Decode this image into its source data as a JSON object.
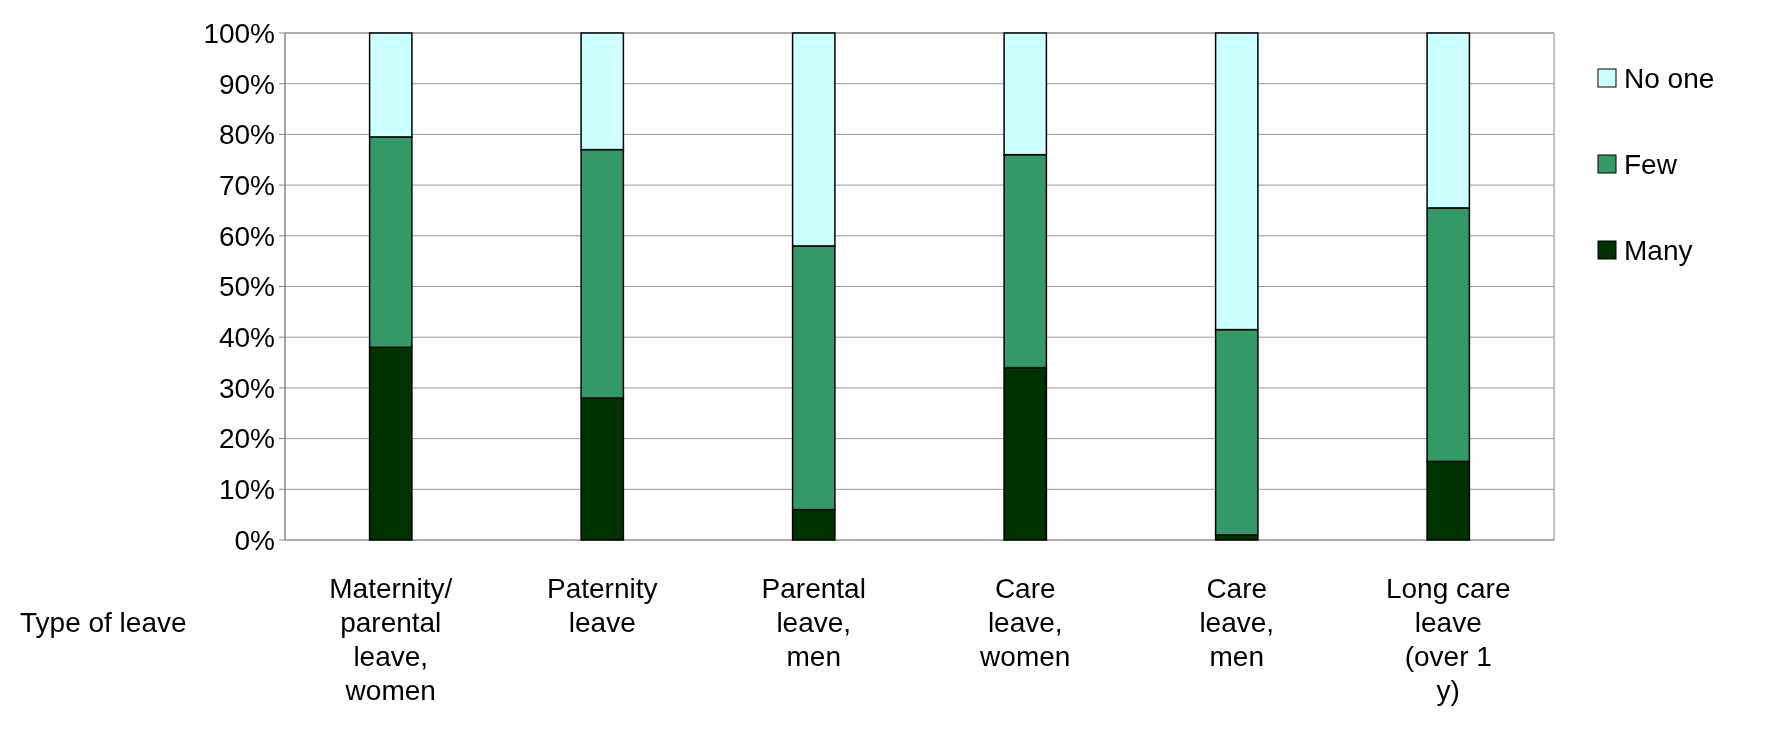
{
  "chart_data": {
    "type": "bar",
    "stacked": true,
    "xlabel": "Type of leave",
    "categories": [
      "Maternity/ parental leave, women",
      "Paternity leave",
      "Parental leave, men",
      "Care leave, women",
      "Care leave, men",
      "Long care leave (over 1 y)"
    ],
    "series": [
      {
        "name": "Many",
        "color": "#003300",
        "values": [
          38,
          28,
          6,
          34,
          1,
          15.5
        ]
      },
      {
        "name": "Few",
        "color": "#339966",
        "values": [
          41.5,
          49,
          52,
          42,
          40.5,
          50
        ]
      },
      {
        "name": "No one",
        "color": "#ccffff",
        "values": [
          20.5,
          23,
          42,
          24,
          58.5,
          34.5
        ]
      }
    ],
    "ylim": [
      0,
      100
    ],
    "yticks": [
      {
        "value": 0,
        "label": "0%"
      },
      {
        "value": 10,
        "label": "10%"
      },
      {
        "value": 20,
        "label": "20%"
      },
      {
        "value": 30,
        "label": "30%"
      },
      {
        "value": 40,
        "label": "40%"
      },
      {
        "value": 50,
        "label": "50%"
      },
      {
        "value": 60,
        "label": "60%"
      },
      {
        "value": 70,
        "label": "70%"
      },
      {
        "value": 80,
        "label": "80%"
      },
      {
        "value": 90,
        "label": "90%"
      },
      {
        "value": 100,
        "label": "100%"
      }
    ],
    "grid": "y",
    "legend": "right"
  }
}
